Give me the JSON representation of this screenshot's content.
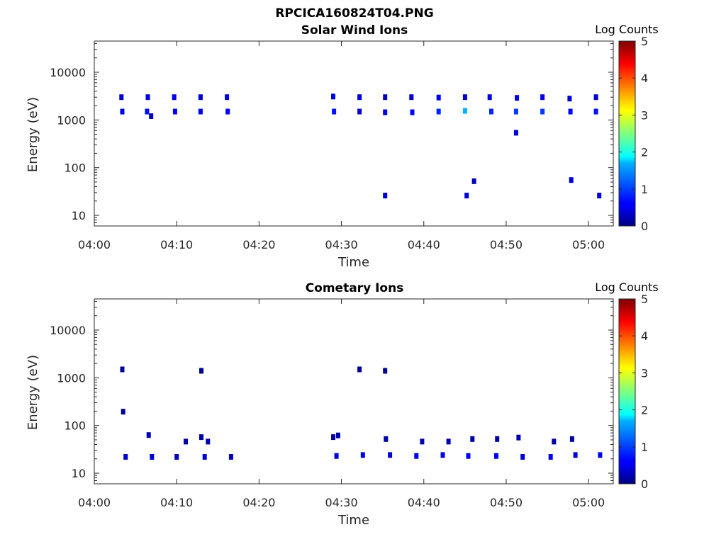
{
  "figure_title": "RPCICA160824T04.PNG",
  "chart_data": [
    {
      "type": "heatmap",
      "title": "Solar Wind Ions",
      "xlabel": "Time",
      "ylabel": "Energy (eV)",
      "xticks": [
        "04:00",
        "04:10",
        "04:20",
        "04:30",
        "04:40",
        "04:50",
        "05:00"
      ],
      "xlim": [
        "04:00",
        "05:03"
      ],
      "yscale": "log",
      "yticks": [
        "10",
        "100",
        "1000",
        "10000"
      ],
      "ylim": [
        6,
        45000
      ],
      "colorbar": {
        "label": "Log Counts",
        "ticks": [
          "0",
          "1",
          "2",
          "3",
          "4",
          "5"
        ],
        "range": [
          0,
          5
        ],
        "colormap": "jet"
      },
      "points": [
        {
          "t": "04:03.3",
          "e": 3000,
          "c": 0.4
        },
        {
          "t": "04:03.4",
          "e": 1500,
          "c": 0.5
        },
        {
          "t": "04:06.5",
          "e": 3000,
          "c": 0.5
        },
        {
          "t": "04:06.4",
          "e": 1500,
          "c": 0.7
        },
        {
          "t": "04:06.9",
          "e": 1200,
          "c": 0.3
        },
        {
          "t": "04:09.7",
          "e": 3000,
          "c": 0.5
        },
        {
          "t": "04:09.8",
          "e": 1500,
          "c": 0.6
        },
        {
          "t": "04:12.9",
          "e": 3000,
          "c": 0.4
        },
        {
          "t": "04:12.9",
          "e": 1500,
          "c": 0.5
        },
        {
          "t": "04:16.1",
          "e": 3000,
          "c": 0.5
        },
        {
          "t": "04:16.2",
          "e": 1500,
          "c": 0.6
        },
        {
          "t": "04:29.0",
          "e": 3100,
          "c": 0.5
        },
        {
          "t": "04:29.1",
          "e": 1500,
          "c": 0.7
        },
        {
          "t": "04:32.2",
          "e": 3000,
          "c": 0.4
        },
        {
          "t": "04:32.2",
          "e": 1500,
          "c": 0.4
        },
        {
          "t": "04:35.3",
          "e": 3000,
          "c": 0.3
        },
        {
          "t": "04:35.3",
          "e": 1450,
          "c": 0.5
        },
        {
          "t": "04:35.3",
          "e": 26,
          "c": 0.4
        },
        {
          "t": "04:38.5",
          "e": 3000,
          "c": 0.4
        },
        {
          "t": "04:38.6",
          "e": 1450,
          "c": 0.6
        },
        {
          "t": "04:41.8",
          "e": 2950,
          "c": 0.5
        },
        {
          "t": "04:41.8",
          "e": 1500,
          "c": 0.8
        },
        {
          "t": "04:45.0",
          "e": 3000,
          "c": 0.4
        },
        {
          "t": "04:45.0",
          "e": 1550,
          "c": 1.5
        },
        {
          "t": "04:45.2",
          "e": 26,
          "c": 0.4
        },
        {
          "t": "04:46.1",
          "e": 52,
          "c": 0.3
        },
        {
          "t": "04:48.0",
          "e": 3000,
          "c": 0.5
        },
        {
          "t": "04:48.2",
          "e": 1500,
          "c": 0.8
        },
        {
          "t": "04:51.3",
          "e": 2900,
          "c": 0.5
        },
        {
          "t": "04:51.2",
          "e": 1500,
          "c": 0.9
        },
        {
          "t": "04:51.2",
          "e": 540,
          "c": 0.4
        },
        {
          "t": "04:54.4",
          "e": 3000,
          "c": 0.5
        },
        {
          "t": "04:54.4",
          "e": 1500,
          "c": 0.9
        },
        {
          "t": "04:57.7",
          "e": 2800,
          "c": 0.4
        },
        {
          "t": "04:57.8",
          "e": 1500,
          "c": 0.6
        },
        {
          "t": "04:57.9",
          "e": 55,
          "c": 0.4
        },
        {
          "t": "05:00.9",
          "e": 3000,
          "c": 0.4
        },
        {
          "t": "05:00.9",
          "e": 1500,
          "c": 0.7
        },
        {
          "t": "05:01.3",
          "e": 26,
          "c": 0.4
        }
      ]
    },
    {
      "type": "heatmap",
      "title": "Cometary Ions",
      "xlabel": "Time",
      "ylabel": "Energy (eV)",
      "xticks": [
        "04:00",
        "04:10",
        "04:20",
        "04:30",
        "04:40",
        "04:50",
        "05:00"
      ],
      "xlim": [
        "04:00",
        "05:03"
      ],
      "yscale": "log",
      "yticks": [
        "10",
        "100",
        "1000",
        "10000"
      ],
      "ylim": [
        6,
        45000
      ],
      "colorbar": {
        "label": "Log Counts",
        "ticks": [
          "0",
          "1",
          "2",
          "3",
          "4",
          "5"
        ],
        "range": [
          0,
          5
        ],
        "colormap": "jet"
      },
      "points": [
        {
          "t": "04:03.4",
          "e": 1500,
          "c": 0.1
        },
        {
          "t": "04:03.5",
          "e": 195,
          "c": 0.1
        },
        {
          "t": "04:03.8",
          "e": 22,
          "c": 0.4
        },
        {
          "t": "04:06.6",
          "e": 63,
          "c": 0.2
        },
        {
          "t": "04:07.0",
          "e": 22,
          "c": 0.4
        },
        {
          "t": "04:10.0",
          "e": 22,
          "c": 0.3
        },
        {
          "t": "04:11.1",
          "e": 46,
          "c": 0.2
        },
        {
          "t": "04:13.0",
          "e": 1400,
          "c": 0.1
        },
        {
          "t": "04:13.0",
          "e": 57,
          "c": 0.2
        },
        {
          "t": "04:13.4",
          "e": 22,
          "c": 0.4
        },
        {
          "t": "04:13.8",
          "e": 46,
          "c": 0.2
        },
        {
          "t": "04:16.6",
          "e": 22,
          "c": 0.3
        },
        {
          "t": "04:29.0",
          "e": 57,
          "c": 0.2
        },
        {
          "t": "04:29.6",
          "e": 62,
          "c": 0.2
        },
        {
          "t": "04:29.4",
          "e": 23,
          "c": 0.4
        },
        {
          "t": "04:32.2",
          "e": 1500,
          "c": 0.1
        },
        {
          "t": "04:32.6",
          "e": 24,
          "c": 0.5
        },
        {
          "t": "04:35.3",
          "e": 1400,
          "c": 0.1
        },
        {
          "t": "04:35.4",
          "e": 52,
          "c": 0.2
        },
        {
          "t": "04:35.9",
          "e": 24,
          "c": 0.4
        },
        {
          "t": "04:39.1",
          "e": 23,
          "c": 0.5
        },
        {
          "t": "04:39.8",
          "e": 46,
          "c": 0.2
        },
        {
          "t": "04:42.3",
          "e": 24,
          "c": 0.5
        },
        {
          "t": "04:43.0",
          "e": 46,
          "c": 0.2
        },
        {
          "t": "04:45.9",
          "e": 52,
          "c": 0.2
        },
        {
          "t": "04:45.4",
          "e": 23,
          "c": 0.5
        },
        {
          "t": "04:48.9",
          "e": 52,
          "c": 0.2
        },
        {
          "t": "04:48.8",
          "e": 23,
          "c": 0.5
        },
        {
          "t": "04:51.5",
          "e": 56,
          "c": 0.2
        },
        {
          "t": "04:52.0",
          "e": 22,
          "c": 0.4
        },
        {
          "t": "04:55.4",
          "e": 22,
          "c": 0.5
        },
        {
          "t": "04:55.8",
          "e": 46,
          "c": 0.2
        },
        {
          "t": "04:58.0",
          "e": 52,
          "c": 0.2
        },
        {
          "t": "04:58.4",
          "e": 24,
          "c": 0.5
        },
        {
          "t": "05:01.4",
          "e": 24,
          "c": 0.5
        }
      ]
    }
  ]
}
